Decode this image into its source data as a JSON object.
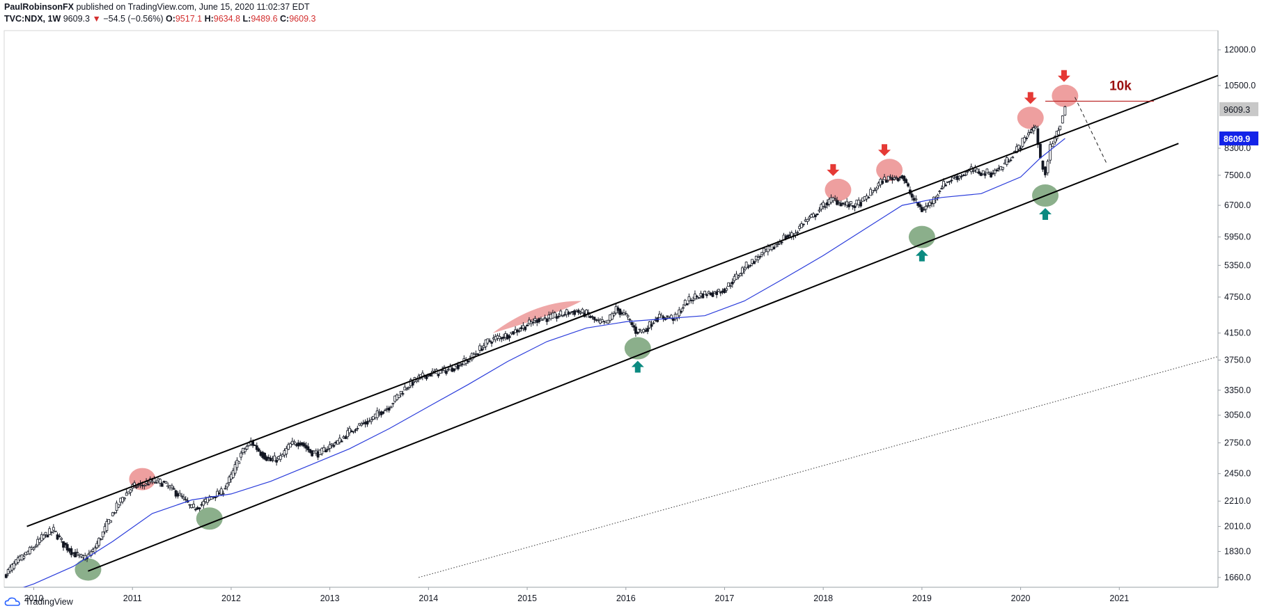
{
  "header": {
    "author": "PaulRobinsonFX",
    "published": "published on TradingView.com, June 15, 2020 11:02:37 EDT",
    "symbol": "TVC:NDX, 1W",
    "last": "9609.3",
    "change": "−54.5 (−0.56%)",
    "o_label": "O:",
    "o_value": "9517.1",
    "h_label": "H:",
    "h_value": "9634.8",
    "l_label": "L:",
    "l_value": "9489.6",
    "c_label": "C:",
    "c_value": "9609.3"
  },
  "footer": {
    "brand": "TradingView"
  },
  "colors": {
    "candle": "#131722",
    "ma": "#2a3cdb",
    "channel": "#000000",
    "red_marker": "#e05050",
    "green_marker": "#3d7a3d",
    "teal_arrow": "#0b8a80",
    "price_badge": "#c8c8c8",
    "ma_badge": "#1323e8",
    "text_red": "#9b1010"
  },
  "chart_data": {
    "type": "line",
    "title": "",
    "xlabel": "",
    "ylabel": "",
    "log_scale": true,
    "ylim": [
      1600,
      12900
    ],
    "xlim": [
      2009.7,
      2022.0
    ],
    "x_ticks": [
      "2010",
      "2011",
      "2012",
      "2013",
      "2014",
      "2015",
      "2016",
      "2017",
      "2018",
      "2019",
      "2020",
      "2021"
    ],
    "y_ticks": [
      "12000.0",
      "10500.0",
      "8300.0",
      "7500.0",
      "6700.0",
      "5950.0",
      "5350.0",
      "4750.0",
      "4150.0",
      "3750.0",
      "3350.0",
      "3050.0",
      "2750.0",
      "2450.0",
      "2210.0",
      "2010.0",
      "1830.0",
      "1660.0"
    ],
    "last_price_label": "9609.3",
    "ma_price_label": "8609.9",
    "annotation_text": "10k",
    "series": [
      {
        "x": [
          2009.7,
          2009.8,
          2009.9,
          2010.0,
          2010.1,
          2010.2,
          2010.3,
          2010.4,
          2010.5,
          2010.6,
          2010.7,
          2010.8,
          2010.9,
          2011.0,
          2011.1,
          2011.2,
          2011.3,
          2011.4,
          2011.5,
          2011.6,
          2011.7,
          2011.8,
          2011.9,
          2012.0,
          2012.1,
          2012.2,
          2012.3,
          2012.4,
          2012.5,
          2012.6,
          2012.7,
          2012.8,
          2012.9,
          2013.0,
          2013.1,
          2013.2,
          2013.3,
          2013.4,
          2013.5,
          2013.6,
          2013.7,
          2013.8,
          2013.9,
          2014.0,
          2014.1,
          2014.2,
          2014.3,
          2014.4,
          2014.5,
          2014.6,
          2014.7,
          2014.8,
          2014.9,
          2015.0,
          2015.1,
          2015.2,
          2015.3,
          2015.4,
          2015.5,
          2015.6,
          2015.7,
          2015.8,
          2015.9,
          2016.0,
          2016.1,
          2016.2,
          2016.3,
          2016.4,
          2016.5,
          2016.6,
          2016.7,
          2016.8,
          2016.9,
          2017.0,
          2017.1,
          2017.2,
          2017.3,
          2017.4,
          2017.5,
          2017.6,
          2017.7,
          2017.8,
          2017.9,
          2018.0,
          2018.1,
          2018.2,
          2018.3,
          2018.4,
          2018.5,
          2018.6,
          2018.7,
          2018.8,
          2018.9,
          2019.0,
          2019.1,
          2019.2,
          2019.3,
          2019.4,
          2019.5,
          2019.6,
          2019.7,
          2019.8,
          2019.9,
          2020.0,
          2020.1,
          2020.15,
          2020.2,
          2020.25,
          2020.3,
          2020.35,
          2020.4,
          2020.45
        ],
        "values": [
          1670,
          1740,
          1800,
          1860,
          1940,
          1980,
          1880,
          1820,
          1780,
          1830,
          1960,
          2110,
          2240,
          2330,
          2350,
          2380,
          2370,
          2310,
          2240,
          2150,
          2180,
          2250,
          2280,
          2420,
          2640,
          2760,
          2650,
          2570,
          2600,
          2730,
          2760,
          2660,
          2640,
          2720,
          2770,
          2870,
          2940,
          2980,
          3080,
          3150,
          3300,
          3420,
          3500,
          3560,
          3580,
          3620,
          3680,
          3750,
          3880,
          4020,
          4080,
          4120,
          4200,
          4280,
          4370,
          4390,
          4420,
          4480,
          4500,
          4460,
          4330,
          4300,
          4540,
          4430,
          4180,
          4200,
          4390,
          4410,
          4390,
          4640,
          4760,
          4810,
          4830,
          4890,
          5080,
          5310,
          5450,
          5620,
          5730,
          5940,
          6000,
          6290,
          6430,
          6700,
          6850,
          6740,
          6690,
          6800,
          7070,
          7360,
          7430,
          7470,
          6900,
          6580,
          6780,
          7200,
          7400,
          7500,
          7650,
          7580,
          7560,
          7710,
          8050,
          8400,
          8880,
          8970,
          7900,
          7600,
          8300,
          8600,
          9100,
          9609
        ]
      },
      {
        "name": "",
        "x": [
          2009.7,
          2010.0,
          2010.4,
          2010.8,
          2011.2,
          2011.6,
          2012.0,
          2012.4,
          2012.8,
          2013.2,
          2013.6,
          2014.0,
          2014.4,
          2014.8,
          2015.2,
          2015.6,
          2016.0,
          2016.4,
          2016.8,
          2017.2,
          2017.6,
          2018.0,
          2018.4,
          2018.8,
          2019.2,
          2019.6,
          2020.0,
          2020.2,
          2020.45
        ],
        "values": [
          1560,
          1620,
          1730,
          1900,
          2110,
          2220,
          2270,
          2380,
          2530,
          2690,
          2900,
          3150,
          3420,
          3730,
          4020,
          4230,
          4330,
          4380,
          4430,
          4680,
          5090,
          5550,
          6100,
          6700,
          6900,
          7000,
          7450,
          8000,
          8609.9
        ]
      }
    ],
    "channel_upper": {
      "x": [
        2009.93,
        2022.0
      ],
      "values": [
        2010,
        10900
      ]
    },
    "channel_lower": {
      "x": [
        2010.55,
        2021.6
      ],
      "values": [
        1700,
        8450
      ]
    },
    "dotted_trend": {
      "x": [
        2013.9,
        2022.0
      ],
      "values": [
        1660,
        3800
      ]
    },
    "projection_dashed": {
      "x": [
        2020.55,
        2020.87
      ],
      "values": [
        10050,
        7850
      ]
    },
    "resistance_10k": {
      "x": [
        2020.25,
        2021.35
      ],
      "y": 9900
    },
    "red_markers": [
      {
        "x": 2011.1,
        "y": 2400
      },
      {
        "x": 2018.15,
        "y": 7100
      },
      {
        "x": 2018.67,
        "y": 7650
      },
      {
        "x": 2020.1,
        "y": 9300
      },
      {
        "x": 2020.45,
        "y": 10100
      }
    ],
    "green_markers": [
      {
        "x": 2010.55,
        "y": 1710
      },
      {
        "x": 2011.78,
        "y": 2070
      },
      {
        "x": 2016.12,
        "y": 3920
      },
      {
        "x": 2019.0,
        "y": 5950
      },
      {
        "x": 2020.25,
        "y": 6950
      }
    ],
    "down_arrows": [
      {
        "x": 2018.1
      },
      {
        "x": 2018.62
      },
      {
        "x": 2020.1
      },
      {
        "x": 2020.44
      }
    ],
    "up_arrows": [
      {
        "x": 2016.12
      },
      {
        "x": 2019.0
      },
      {
        "x": 2020.25
      }
    ]
  }
}
